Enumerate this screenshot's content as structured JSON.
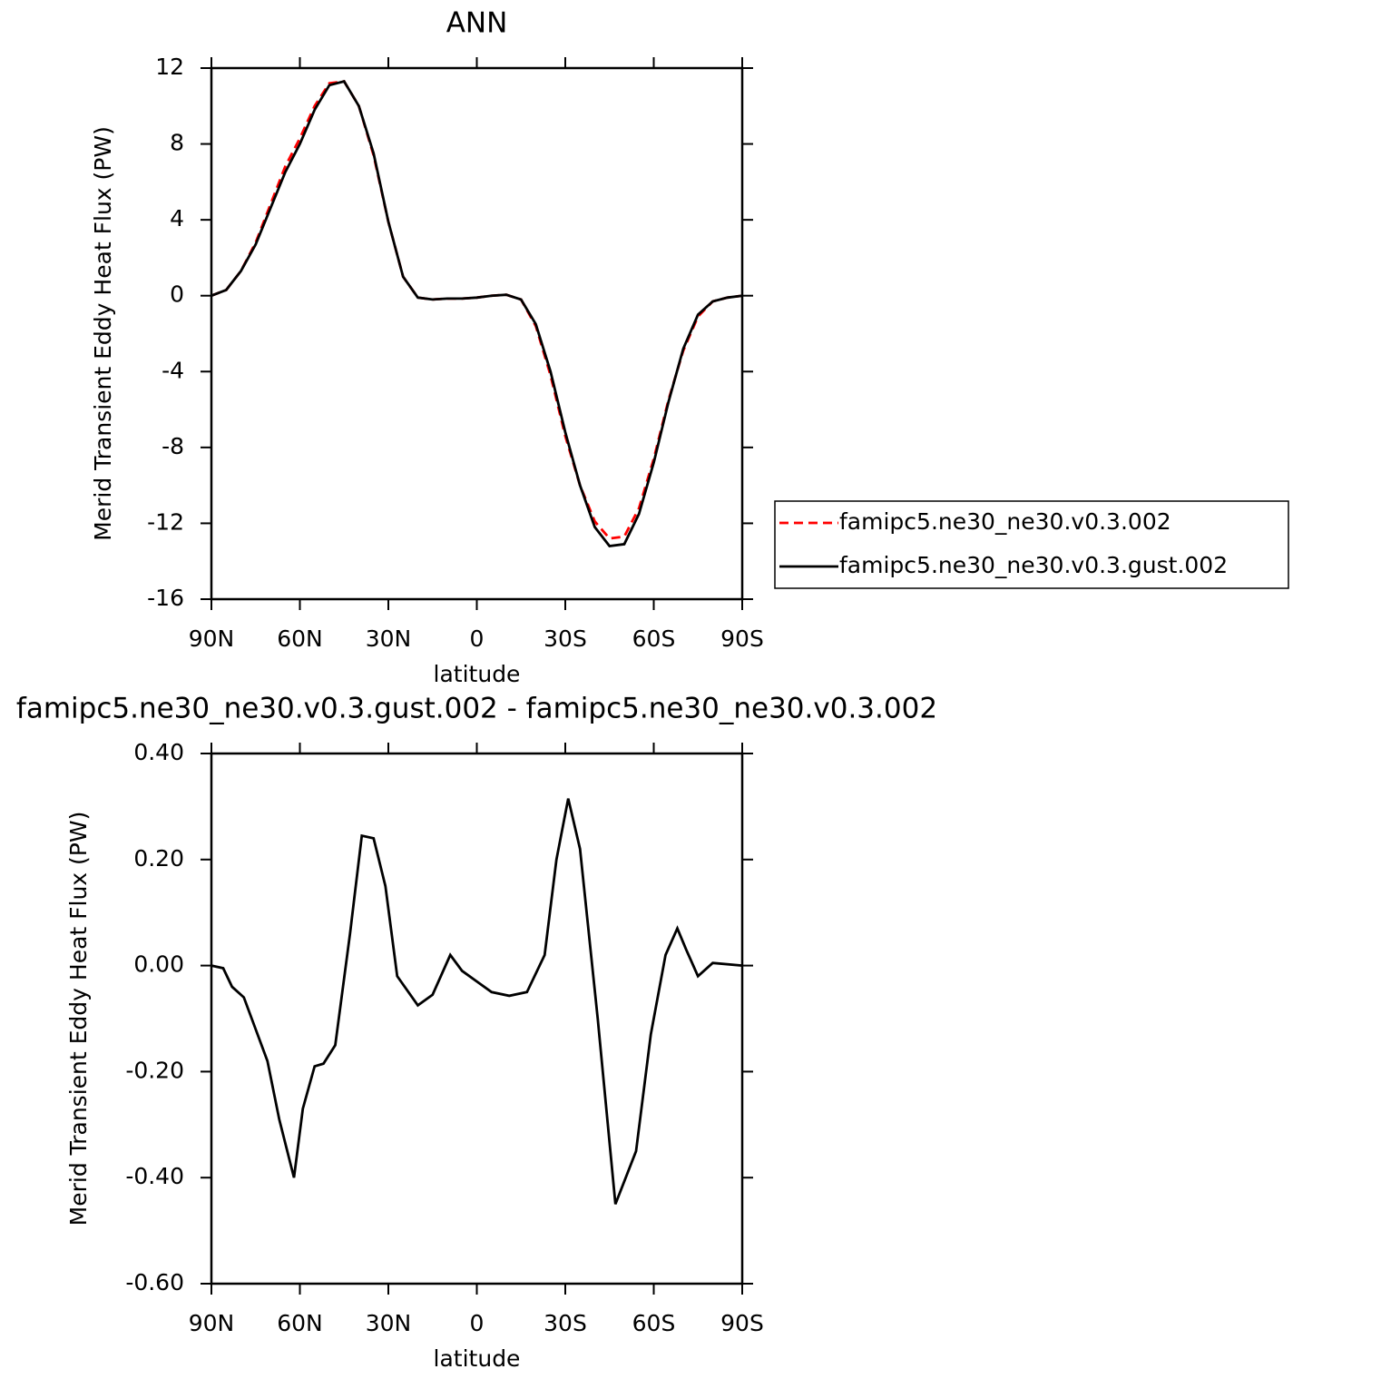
{
  "chart_data": [
    {
      "type": "line",
      "title": "ANN",
      "xlabel": "latitude",
      "ylabel": "Merid Transient Eddy Heat Flux (PW)",
      "x": [
        90,
        85,
        80,
        75,
        70,
        65,
        60,
        55,
        50,
        45,
        40,
        35,
        30,
        25,
        20,
        15,
        10,
        5,
        0,
        -5,
        -10,
        -15,
        -20,
        -25,
        -30,
        -35,
        -40,
        -45,
        -50,
        -55,
        -60,
        -65,
        -70,
        -75,
        -80,
        -85,
        -90
      ],
      "series": [
        {
          "name": "famipc5.ne30_ne30.v0.3.002",
          "color": "#ff0000",
          "line_style": "dashed",
          "values": [
            0,
            0.3,
            1.3,
            2.8,
            4.8,
            6.8,
            8.3,
            10.0,
            11.2,
            11.3,
            10.0,
            7.4,
            3.9,
            1.0,
            -0.1,
            -0.2,
            -0.15,
            -0.15,
            -0.1,
            0,
            0.05,
            -0.2,
            -1.6,
            -4.2,
            -7.4,
            -10.0,
            -11.9,
            -12.8,
            -12.7,
            -11.2,
            -8.6,
            -5.5,
            -2.9,
            -1.1,
            -0.3,
            -0.1,
            0
          ]
        },
        {
          "name": "famipc5.ne30_ne30.v0.3.gust.002",
          "color": "#000000",
          "line_style": "solid",
          "values": [
            0,
            0.3,
            1.3,
            2.7,
            4.6,
            6.5,
            8.0,
            9.8,
            11.1,
            11.3,
            10.0,
            7.5,
            3.9,
            1.0,
            -0.1,
            -0.2,
            -0.15,
            -0.15,
            -0.1,
            0,
            0.05,
            -0.2,
            -1.5,
            -4.0,
            -7.2,
            -10.0,
            -12.2,
            -13.2,
            -13.1,
            -11.5,
            -8.8,
            -5.6,
            -2.8,
            -1.0,
            -0.3,
            -0.1,
            0
          ]
        }
      ],
      "xlim": [
        90,
        -90
      ],
      "xticks": [
        {
          "value": 90,
          "label": "90N"
        },
        {
          "value": 60,
          "label": "60N"
        },
        {
          "value": 30,
          "label": "30N"
        },
        0,
        {
          "value": -30,
          "label": "30S"
        },
        {
          "value": -60,
          "label": "60S"
        },
        {
          "value": -90,
          "label": "90S"
        }
      ],
      "ylim": [
        -16,
        12
      ],
      "yticks": [
        12,
        8,
        4,
        0,
        -4,
        -8,
        -12,
        -16
      ],
      "legend": "right"
    },
    {
      "type": "line",
      "title": "famipc5.ne30_ne30.v0.3.gust.002 - famipc5.ne30_ne30.v0.3.002",
      "xlabel": "latitude",
      "ylabel": "Merid Transient Eddy Heat Flux (PW)",
      "x": [
        90,
        86,
        83,
        79,
        75,
        71,
        67,
        62,
        59,
        55,
        52,
        48,
        43,
        39,
        35,
        31,
        27,
        20,
        15,
        9,
        5,
        0,
        -5,
        -11,
        -17,
        -23,
        -27,
        -31,
        -35,
        -41,
        -47,
        -54,
        -59,
        -64,
        -68,
        -71,
        -75,
        -80,
        -90
      ],
      "series": [
        {
          "name": null,
          "color": "#000000",
          "line_style": "solid",
          "values": [
            0,
            -0.005,
            -0.04,
            -0.06,
            -0.12,
            -0.18,
            -0.29,
            -0.4,
            -0.27,
            -0.19,
            -0.185,
            -0.15,
            0.06,
            0.245,
            0.24,
            0.15,
            -0.02,
            -0.075,
            -0.055,
            0.02,
            -0.01,
            -0.03,
            -0.05,
            -0.057,
            -0.05,
            0.02,
            0.2,
            0.315,
            0.22,
            -0.1,
            -0.45,
            -0.35,
            -0.13,
            0.02,
            0.07,
            0.03,
            -0.02,
            0.005,
            0
          ]
        }
      ],
      "xlim": [
        90,
        -90
      ],
      "xticks": [
        {
          "value": 90,
          "label": "90N"
        },
        {
          "value": 60,
          "label": "60N"
        },
        {
          "value": 30,
          "label": "30N"
        },
        0,
        {
          "value": -30,
          "label": "30S"
        },
        {
          "value": -60,
          "label": "60S"
        },
        {
          "value": -90,
          "label": "90S"
        }
      ],
      "ylim": [
        -0.6,
        0.4
      ],
      "yticks": [
        {
          "value": 0.4,
          "label": "0.40"
        },
        {
          "value": 0.2,
          "label": "0.20"
        },
        {
          "value": 0,
          "label": "0.00"
        },
        {
          "value": -0.2,
          "label": "-0.20"
        },
        {
          "value": -0.4,
          "label": "-0.40"
        },
        {
          "value": -0.6,
          "label": "-0.60"
        }
      ]
    }
  ]
}
